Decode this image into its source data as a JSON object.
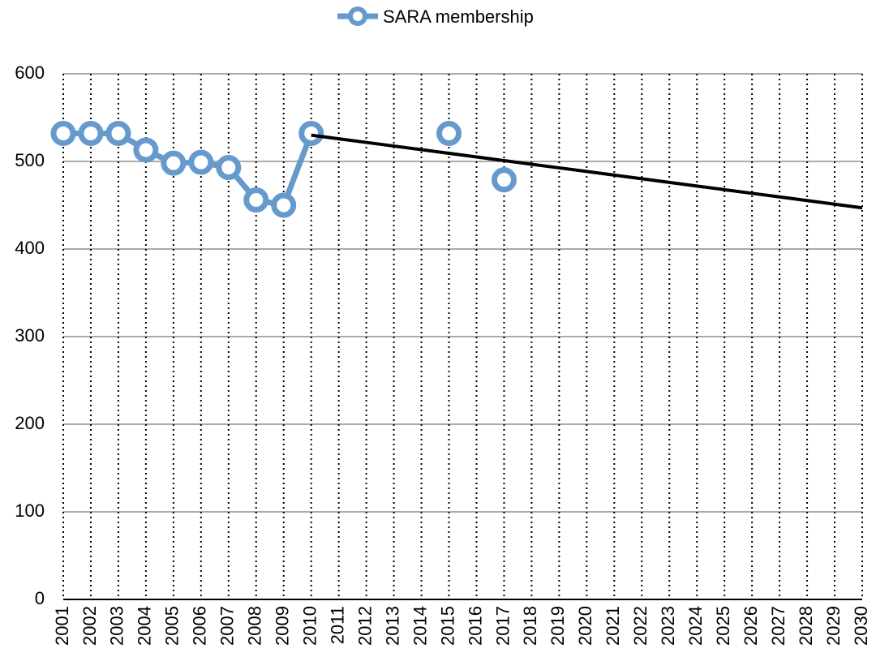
{
  "chart_data": {
    "type": "line",
    "categories": [
      "2001",
      "2002",
      "2003",
      "2004",
      "2005",
      "2006",
      "2007",
      "2008",
      "2009",
      "2010",
      "2011",
      "2012",
      "2013",
      "2014",
      "2015",
      "2016",
      "2017",
      "2018",
      "2019",
      "2020",
      "2021",
      "2022",
      "2023",
      "2024",
      "2025",
      "2026",
      "2027",
      "2028",
      "2029",
      "2030"
    ],
    "series": [
      {
        "name": "SARA membership",
        "color": "#6699cc",
        "values": [
          532,
          532,
          532,
          513,
          498,
          499,
          493,
          456,
          450,
          532,
          null,
          null,
          null,
          null,
          532,
          null,
          479,
          null,
          null,
          null,
          null,
          null,
          null,
          null,
          null,
          null,
          null,
          null,
          null,
          null
        ]
      }
    ],
    "trendline": {
      "color": "#000000",
      "values": [
        null,
        null,
        null,
        null,
        null,
        null,
        null,
        null,
        null,
        530,
        525.85,
        521.7,
        517.55,
        513.4,
        509.25,
        505.1,
        500.95,
        496.8,
        492.65,
        488.5,
        484.35,
        480.2,
        476.05,
        471.9,
        467.75,
        463.6,
        459.45,
        455.3,
        451.15,
        447
      ]
    },
    "ylim": [
      0,
      600
    ],
    "yticks": [
      0,
      100,
      200,
      300,
      400,
      500,
      600
    ],
    "grid": true,
    "legend": "top"
  }
}
